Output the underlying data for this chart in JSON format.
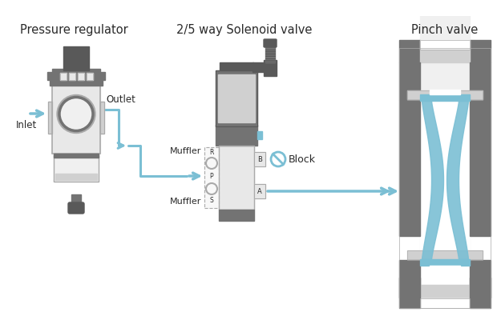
{
  "bg_color": "#ffffff",
  "gray_dark": "#595959",
  "gray_mid": "#737373",
  "gray_light": "#aaaaaa",
  "gray_body": "#d0d0d0",
  "gray_lighter": "#e8e8e8",
  "gray_very_light": "#f0f0f0",
  "blue": "#7bbfd4",
  "text_color": "#2a2a2a",
  "label1": "Pressure regulator",
  "label2": "2/5 way Solenoid valve",
  "label3": "Pinch valve",
  "inlet": "Inlet",
  "outlet": "Outlet",
  "muffler_top": "Muffler",
  "muffler_bot": "Muffler",
  "block_label": "Block"
}
